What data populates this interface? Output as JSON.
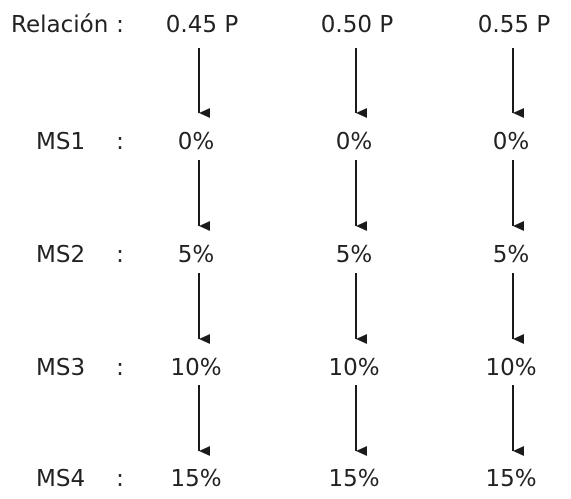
{
  "header": {
    "label": "Relación",
    "separator": ":",
    "columns": [
      "0.45 P",
      "0.50 P",
      "0.55 P"
    ]
  },
  "rows": [
    {
      "label": "MS1",
      "separator": ":",
      "values": [
        "0%",
        "0%",
        "0%"
      ]
    },
    {
      "label": "MS2",
      "separator": ":",
      "values": [
        "5%",
        "5%",
        "5%"
      ]
    },
    {
      "label": "MS3",
      "separator": ":",
      "values": [
        "10%",
        "10%",
        "10%"
      ]
    },
    {
      "label": "MS4",
      "separator": ":",
      "values": [
        "15%",
        "15%",
        "15%"
      ]
    }
  ],
  "colors": {
    "text": "#222222",
    "arrow": "#1a1a1a",
    "background": "#ffffff"
  },
  "icons": {
    "arrow": "arrow-down-icon"
  }
}
